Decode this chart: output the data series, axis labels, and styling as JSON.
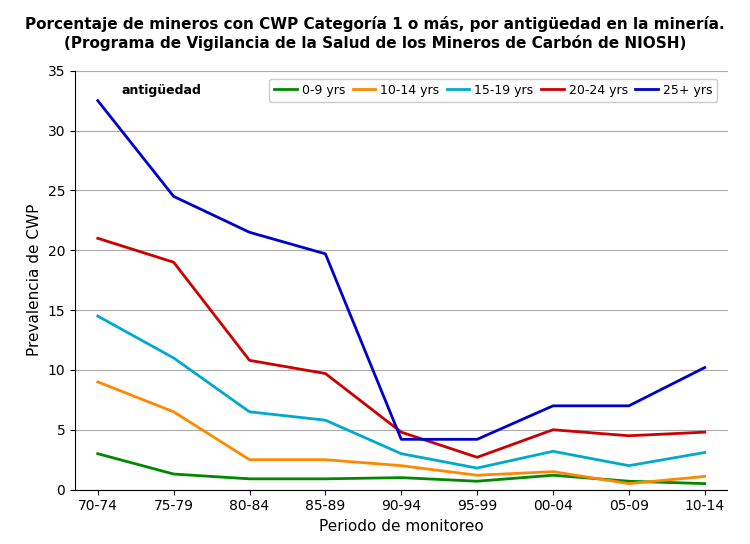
{
  "title_line1": "Porcentaje de mineros con CWP Categoría 1 o más, por antigüedad en la minería.",
  "title_line2": "(Programa de Vigilancia de la Salud de los Mineros de Carbón de NIOSH)",
  "xlabel": "Periodo de monitoreo",
  "ylabel": "Prevalencia de CWP",
  "x_labels": [
    "70-74",
    "75-79",
    "80-84",
    "85-89",
    "90-94",
    "95-99",
    "00-04",
    "05-09",
    "10-14"
  ],
  "series": {
    "0-9 yrs": [
      3.0,
      1.3,
      0.9,
      0.9,
      1.0,
      0.7,
      1.2,
      0.7,
      0.5
    ],
    "10-14 yrs": [
      9.0,
      6.5,
      2.5,
      2.5,
      2.0,
      1.2,
      1.5,
      0.5,
      1.1
    ],
    "15-19 yrs": [
      14.5,
      11.0,
      6.5,
      5.8,
      3.0,
      1.8,
      3.2,
      2.0,
      3.1
    ],
    "20-24 yrs": [
      21.0,
      19.0,
      10.8,
      9.7,
      4.8,
      2.7,
      5.0,
      4.5,
      4.8
    ],
    "25+ yrs": [
      32.5,
      24.5,
      21.5,
      19.7,
      4.2,
      4.2,
      7.0,
      7.0,
      10.2
    ]
  },
  "colors": {
    "0-9 yrs": "#008800",
    "10-14 yrs": "#ff8800",
    "15-19 yrs": "#00aacc",
    "20-24 yrs": "#cc0000",
    "25+ yrs": "#0000cc"
  },
  "legend_prefix": "antigüedad",
  "ylim": [
    0,
    35
  ],
  "yticks": [
    0,
    5,
    10,
    15,
    20,
    25,
    30,
    35
  ],
  "background_color": "#ffffff",
  "grid_color": "#aaaaaa",
  "title_fontsize": 11,
  "axis_label_fontsize": 11,
  "tick_fontsize": 10,
  "legend_fontsize": 9
}
